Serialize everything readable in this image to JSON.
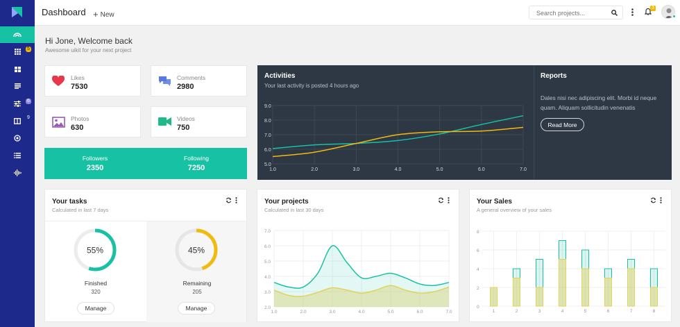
{
  "header": {
    "title": "Dashboard",
    "new_label": "New",
    "search_placeholder": "Search projects...",
    "notification_count": "3"
  },
  "sidebar": {
    "badges": [
      "5",
      "6",
      "9"
    ]
  },
  "welcome": {
    "title": "Hi Jone, Welcome back",
    "subtitle": "Awesome uikit for your next project"
  },
  "stats": [
    {
      "label": "Likes",
      "value": "7530",
      "icon": "heart-icon",
      "color": "#e8374a"
    },
    {
      "label": "Comments",
      "value": "2980",
      "icon": "comments-icon",
      "color": "#5a79e0"
    },
    {
      "label": "Photos",
      "value": "630",
      "icon": "photo-icon",
      "color": "#9b59b6"
    },
    {
      "label": "Videos",
      "value": "750",
      "icon": "video-icon",
      "color": "#21b98a"
    }
  ],
  "social": {
    "followers_label": "Followers",
    "followers": "2350",
    "following_label": "Following",
    "following": "7250"
  },
  "activities": {
    "title": "Activities",
    "subtitle": "Your last activity is posted 4 hours ago",
    "chart_data": {
      "type": "line",
      "xlim": [
        1,
        7
      ],
      "ylim": [
        5,
        9
      ],
      "x_ticks": [
        "1.0",
        "2.0",
        "3.0",
        "4.0",
        "5.0",
        "6.0",
        "7.0"
      ],
      "y_ticks": [
        "5.0",
        "6.0",
        "7.0",
        "8.0",
        "9.0"
      ],
      "series": [
        {
          "color": "#17c2a4",
          "x": [
            1,
            2,
            3,
            4,
            5,
            6,
            7
          ],
          "y": [
            6.05,
            6.3,
            6.4,
            6.6,
            7.05,
            7.7,
            8.3
          ]
        },
        {
          "color": "#f2b90f",
          "x": [
            1,
            2,
            3,
            4,
            5,
            6,
            7
          ],
          "y": [
            5.5,
            5.8,
            6.4,
            7.0,
            7.2,
            7.25,
            7.5
          ]
        }
      ]
    }
  },
  "reports": {
    "title": "Reports",
    "text": "Dales nisi nec adipiscing elit. Morbi id neque quam. Aliquam sollicitudin venenatis",
    "button": "Read More"
  },
  "tasks": {
    "title": "Your tasks",
    "subtitle": "Calculated in last 7 days",
    "items": [
      {
        "percent": 55,
        "percent_label": "55%",
        "label": "Finished",
        "count": "320",
        "button": "Manage",
        "color": "#17c2a4"
      },
      {
        "percent": 45,
        "percent_label": "45%",
        "label": "Remaining",
        "count": "205",
        "button": "Manage",
        "color": "#f2b90f"
      }
    ]
  },
  "projects": {
    "title": "Your projects",
    "subtitle": "Calculated in last 30 days",
    "chart_data": {
      "type": "area",
      "xlim": [
        1,
        7
      ],
      "ylim": [
        2,
        7
      ],
      "x_ticks": [
        "1.0",
        "2.0",
        "3.0",
        "4.0",
        "5.0",
        "6.0",
        "7.0"
      ],
      "y_ticks": [
        "2.0",
        "3.0",
        "4.0",
        "5.0",
        "6.0",
        "7.0"
      ],
      "series": [
        {
          "color": "#17c2a4",
          "x": [
            1,
            1.5,
            2,
            2.5,
            3,
            3.5,
            4,
            4.5,
            5,
            5.5,
            6,
            6.5,
            7
          ],
          "y": [
            3.6,
            3.3,
            3.3,
            4.2,
            6.0,
            4.9,
            3.9,
            4.0,
            4.2,
            3.9,
            3.5,
            3.4,
            3.6
          ]
        },
        {
          "color": "#e3d25b",
          "x": [
            1,
            1.5,
            2,
            2.5,
            3,
            3.5,
            4,
            4.5,
            5,
            5.5,
            6,
            6.5,
            7
          ],
          "y": [
            3.1,
            2.75,
            2.7,
            2.95,
            3.25,
            3.1,
            2.9,
            3.1,
            3.4,
            3.1,
            2.9,
            3.0,
            3.3
          ]
        }
      ]
    }
  },
  "sales": {
    "title": "Your Sales",
    "subtitle": "A general overview of your sales",
    "chart_data": {
      "type": "bar",
      "categories": [
        "1",
        "2",
        "3",
        "4",
        "5",
        "6",
        "7",
        "8"
      ],
      "ylim": [
        0,
        8
      ],
      "y_ticks": [
        "0",
        "2",
        "4",
        "6",
        "8"
      ],
      "series": [
        {
          "color": "#e3d25b",
          "values": [
            2,
            3,
            2,
            5,
            4,
            3,
            4,
            2
          ]
        },
        {
          "color": "#17c2a4",
          "values": [
            2,
            4,
            5,
            7,
            6,
            4,
            5,
            4
          ]
        }
      ]
    }
  }
}
